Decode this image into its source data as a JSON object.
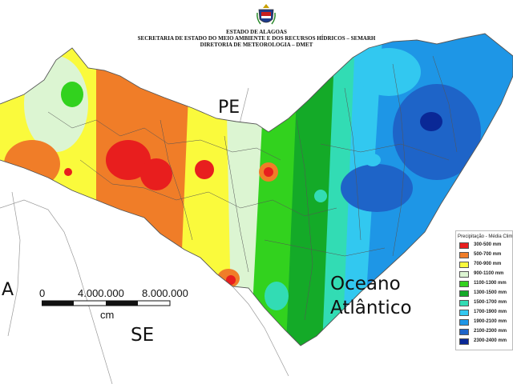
{
  "header": {
    "line1": "ESTADO DE ALAGOAS",
    "line2": "SECRETARIA DE ESTADO DO MEIO AMBIENTE E DOS RECURSOS HÍDRICOS – SEMARH",
    "line3": "DIRETORIA DE METEOROLOGIA – DMET"
  },
  "map_labels": {
    "pe": "PE",
    "se": "SE",
    "left_state": "A",
    "ocean_line1": "Oceano",
    "ocean_line2": "Atlântico"
  },
  "scale": {
    "zero": "0",
    "mid": "4.000.000",
    "end": "8.000.000",
    "unit": "cm"
  },
  "legend": {
    "title": "Precipitação - Média Clim",
    "items": [
      {
        "label": "300-500 mm",
        "color": "#e81e1e"
      },
      {
        "label": "500-700 mm",
        "color": "#f07d28"
      },
      {
        "label": "700-900 mm",
        "color": "#fafa3c"
      },
      {
        "label": "900-1100 mm",
        "color": "#dcf5d2"
      },
      {
        "label": "1100-1300 mm",
        "color": "#32d21e"
      },
      {
        "label": "1300-1500 mm",
        "color": "#14aa28"
      },
      {
        "label": "1500-1700 mm",
        "color": "#32dcb4"
      },
      {
        "label": "1700-1900 mm",
        "color": "#32c8f0"
      },
      {
        "label": "1900-2100 mm",
        "color": "#1e96e6"
      },
      {
        "label": "2100-2300 mm",
        "color": "#1e64c8"
      },
      {
        "label": "2300-2400 mm",
        "color": "#0a2896"
      }
    ]
  },
  "colors": {
    "background": "#ffffff",
    "border_lines": "#555555"
  }
}
